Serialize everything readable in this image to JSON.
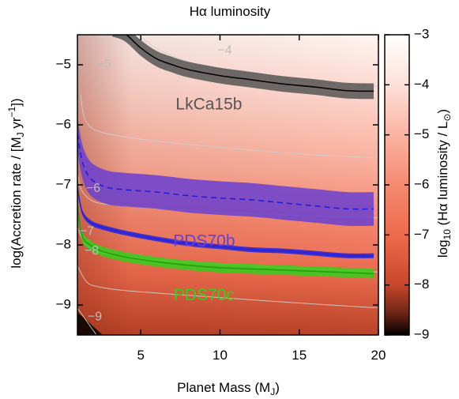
{
  "chart_data": {
    "type": "heatmap",
    "title": "Hα luminosity",
    "xlabel": "Planet Mass (M",
    "xlabel_sub": "J",
    "xlabel_end": ")",
    "ylabel": "log(Accretion rate / [M",
    "ylabel_sub": "J",
    "ylabel_mid": " yr",
    "ylabel_sup": "−1",
    "ylabel_end": "])",
    "colorbar_label": "log",
    "colorbar_label_sub": "10",
    "colorbar_label_mid": " (Hα luminosity / L",
    "colorbar_label_sub2": "⊙",
    "colorbar_label_end": ")",
    "xlim": [
      1,
      20
    ],
    "ylim": [
      -9.5,
      -4.5
    ],
    "clim": [
      -9,
      -3
    ],
    "x_ticks": [
      5,
      10,
      15,
      20
    ],
    "y_ticks": [
      -5,
      -6,
      -7,
      -8,
      -9
    ],
    "c_ticks": [
      -3,
      -4,
      -5,
      -6,
      -7,
      -8,
      -9
    ],
    "contours": [
      {
        "level": "−4",
        "points": [
          [
            4.8,
            -4.5
          ],
          [
            6,
            -4.73
          ],
          [
            8,
            -4.95
          ],
          [
            10,
            -5.07
          ],
          [
            13,
            -5.2
          ],
          [
            16,
            -5.29
          ],
          [
            20,
            -5.36
          ]
        ]
      },
      {
        "level": "−5",
        "points": [
          [
            1.2,
            -5.5
          ],
          [
            1.4,
            -5.85
          ],
          [
            1.8,
            -6.03
          ],
          [
            2.5,
            -6.12
          ],
          [
            4,
            -6.2
          ],
          [
            7,
            -6.3
          ],
          [
            12,
            -6.42
          ],
          [
            16,
            -6.5
          ],
          [
            20,
            -6.55
          ]
        ]
      },
      {
        "level": "−6",
        "points": [
          [
            1,
            -6.8
          ],
          [
            1.2,
            -7.05
          ],
          [
            1.6,
            -7.2
          ],
          [
            2.3,
            -7.3
          ],
          [
            4,
            -7.35
          ],
          [
            8,
            -7.43
          ],
          [
            14,
            -7.5
          ],
          [
            20,
            -7.55
          ]
        ]
      },
      {
        "level": "−7",
        "points": [
          [
            1,
            -7.7
          ],
          [
            1.4,
            -7.95
          ],
          [
            2,
            -8.08
          ],
          [
            3,
            -8.15
          ],
          [
            6,
            -8.25
          ],
          [
            12,
            -8.35
          ],
          [
            20,
            -8.45
          ]
        ]
      },
      {
        "level": "−8",
        "points": [
          [
            1,
            -8.35
          ],
          [
            1.6,
            -8.62
          ],
          [
            2.4,
            -8.7
          ],
          [
            4,
            -8.76
          ],
          [
            8,
            -8.84
          ],
          [
            14,
            -8.95
          ],
          [
            20,
            -9.05
          ]
        ]
      },
      {
        "level": "−9",
        "points": [
          [
            1,
            -9.05
          ],
          [
            1.8,
            -9.35
          ],
          [
            2.2,
            -9.5
          ]
        ]
      }
    ],
    "contour_labels": [
      {
        "text": "−4",
        "x": 10.3,
        "y": -4.77
      },
      {
        "text": "−5",
        "x": 2.7,
        "y": -5.0
      },
      {
        "text": "−6",
        "x": 2.0,
        "y": -7.06
      },
      {
        "text": "−7",
        "x": 1.6,
        "y": -7.78
      },
      {
        "text": "−8",
        "x": 1.9,
        "y": -8.1
      },
      {
        "text": "−9",
        "x": 2.1,
        "y": -9.2
      }
    ],
    "series": [
      {
        "name": "LkCa15b",
        "color": "#555555",
        "line_color": "#000000",
        "line_style": "solid",
        "x": [
          3.2,
          4,
          5,
          6,
          7,
          8,
          10,
          12,
          14,
          16,
          18,
          19.7
        ],
        "y": [
          -4.4,
          -4.48,
          -4.72,
          -4.9,
          -5.0,
          -5.08,
          -5.18,
          -5.25,
          -5.32,
          -5.37,
          -5.43,
          -5.44
        ],
        "band_halfwidth": 0.13,
        "label": {
          "x": 9.3,
          "y": -5.67
        }
      },
      {
        "name": "PDS70b",
        "color": "#6a3fd0",
        "line_color": "#1a1ae0",
        "line_style": "dashed",
        "x": [
          1,
          1.3,
          1.7,
          2.2,
          3,
          4,
          6,
          8,
          10,
          12,
          14,
          16,
          18,
          19.7
        ],
        "y": [
          -6.15,
          -6.6,
          -6.85,
          -6.97,
          -7.05,
          -7.08,
          -7.12,
          -7.18,
          -7.22,
          -7.25,
          -7.3,
          -7.35,
          -7.4,
          -7.4
        ],
        "band_halfwidth": 0.28,
        "label": {
          "x": 9.0,
          "y": -7.95
        }
      },
      {
        "name": "PDS70b",
        "color": "#2222e0",
        "line_color": "#2222e0",
        "line_style": "solid",
        "x": [
          1,
          1.3,
          1.8,
          2.5,
          4,
          6,
          8,
          10,
          12,
          14,
          16,
          18,
          19.7
        ],
        "y": [
          -7.05,
          -7.45,
          -7.62,
          -7.7,
          -7.8,
          -7.9,
          -7.98,
          -8.03,
          -8.08,
          -8.1,
          -8.14,
          -8.18,
          -8.18
        ],
        "band_halfwidth": 0.04,
        "label": null
      },
      {
        "name": "PDS70c",
        "color": "#33d01a",
        "line_color": "#1e9e10",
        "line_style": "solid",
        "x": [
          1,
          1.3,
          1.8,
          2.5,
          4,
          6,
          8,
          10,
          12,
          14,
          16,
          18,
          19.7
        ],
        "y": [
          -7.35,
          -7.85,
          -8.0,
          -8.1,
          -8.2,
          -8.28,
          -8.34,
          -8.38,
          -8.4,
          -8.42,
          -8.44,
          -8.46,
          -8.48
        ],
        "band_halfwidth": 0.08,
        "label": {
          "x": 9.0,
          "y": -8.85
        }
      }
    ]
  }
}
